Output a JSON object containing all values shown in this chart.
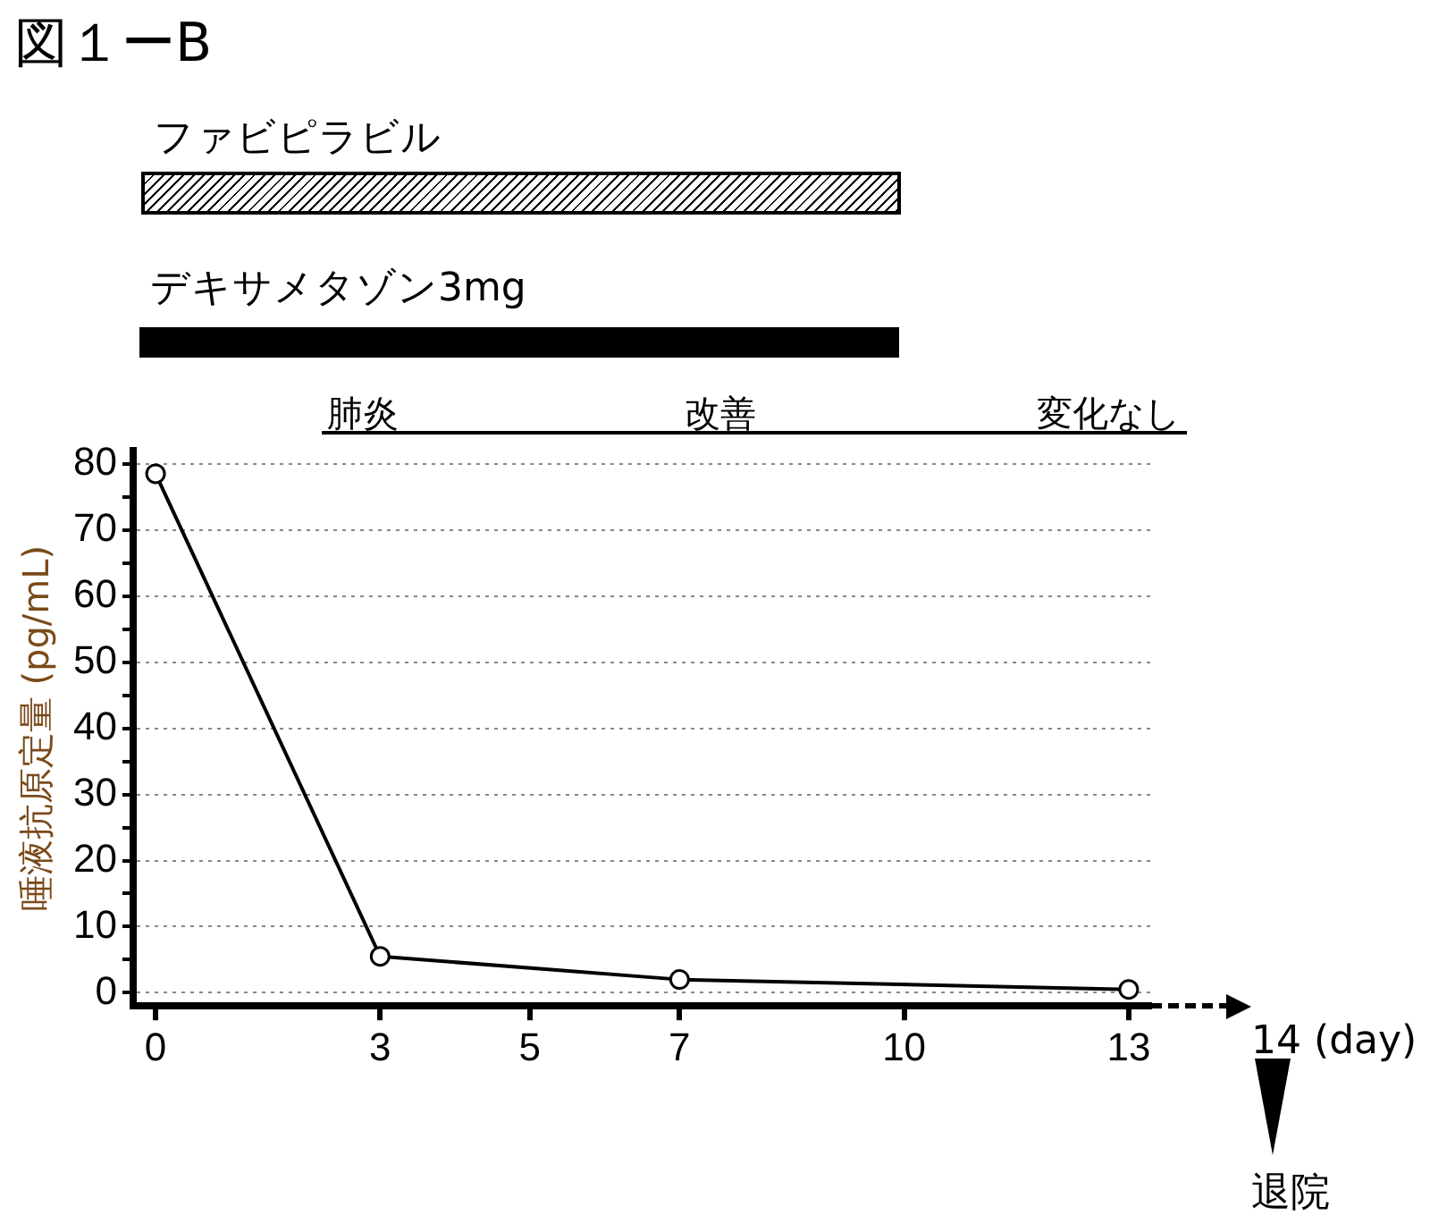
{
  "chart_data": {
    "type": "line",
    "title": "図１ーB",
    "ylabel": "唾液抗原定量 (pg/mL)",
    "annotations": [
      "ファビピラビル",
      "デキサメタゾン3mg",
      "肺炎",
      "改善",
      "変化なし",
      "14 (day)",
      "退院"
    ],
    "x": [
      0,
      3,
      7,
      13
    ],
    "series": [
      {
        "color": "#000000",
        "values": [
          78.5,
          5.5,
          2,
          0.5
        ]
      }
    ],
    "xlim": [
      -0.3,
      13.3
    ],
    "xticks": [
      0,
      3,
      5,
      7,
      10,
      13
    ],
    "ylim": [
      -2,
      82
    ],
    "yticks": [
      0,
      {
        "value": 5,
        "label": null
      },
      10,
      {
        "value": 15,
        "label": null
      },
      20,
      {
        "value": 25,
        "label": null
      },
      30,
      {
        "value": 35,
        "label": null
      },
      40,
      {
        "value": 45,
        "label": null
      },
      50,
      {
        "value": 55,
        "label": null
      },
      60,
      {
        "value": 65,
        "label": null
      },
      70,
      {
        "value": 75,
        "label": null
      },
      80
    ],
    "grid": "y",
    "legend": false,
    "marker": "circle",
    "line_style": "solid"
  }
}
